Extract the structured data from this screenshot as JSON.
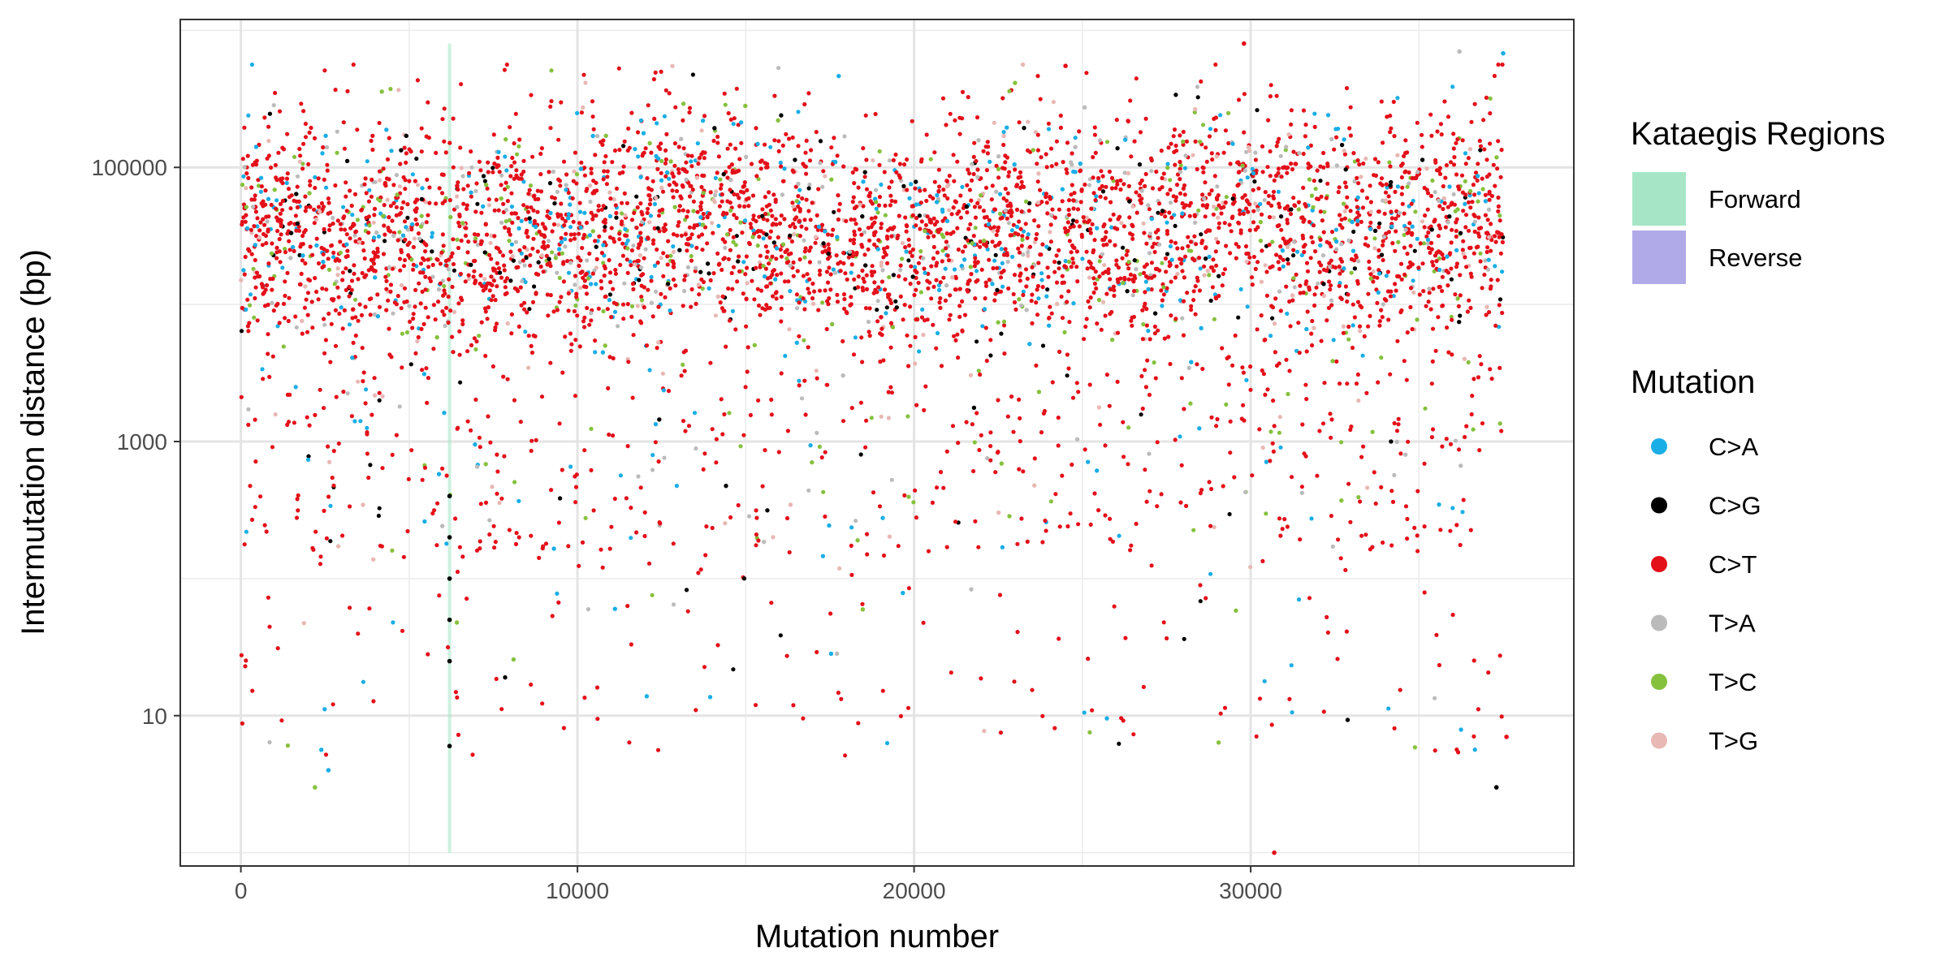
{
  "chart_data": {
    "type": "scatter",
    "xlabel": "Mutation number",
    "ylabel": "Intermutation distance (bp)",
    "xlim": [
      -1800,
      39600
    ],
    "ylim": [
      0.8,
      1200000
    ],
    "y_scale": "log10",
    "x_ticks": [
      {
        "value": 0,
        "label": "0"
      },
      {
        "value": 10000,
        "label": "10000"
      },
      {
        "value": 20000,
        "label": "20000"
      },
      {
        "value": 30000,
        "label": "30000"
      }
    ],
    "y_ticks": [
      {
        "value": 10,
        "label": "10"
      },
      {
        "value": 1000,
        "label": "1000"
      },
      {
        "value": 100000,
        "label": "100000"
      }
    ],
    "y_minor_grid": [
      1,
      100,
      10000,
      1000000
    ],
    "x_minor_grid": [
      5000,
      15000,
      25000,
      35000
    ],
    "grid": true,
    "legend_position": "right",
    "legends": [
      {
        "title": "Kataegis Regions",
        "kind": "fill",
        "entries": [
          {
            "label": "Forward",
            "color": "#a6e6c6"
          },
          {
            "label": "Reverse",
            "color": "#b1aae8"
          }
        ]
      },
      {
        "title": "Mutation",
        "kind": "point",
        "entries": [
          {
            "label": "C>A",
            "color": "#1aaee6"
          },
          {
            "label": "C>G",
            "color": "#000000"
          },
          {
            "label": "C>T",
            "color": "#e3101a"
          },
          {
            "label": "T>A",
            "color": "#bbbbbb"
          },
          {
            "label": "T>C",
            "color": "#86c13d"
          },
          {
            "label": "T>G",
            "color": "#e8b8b4"
          }
        ]
      }
    ],
    "kataegis_regions": [
      {
        "strand": "Forward",
        "x_start": 6150,
        "x_end": 6250,
        "y_min": 1,
        "y_max": 800000
      }
    ],
    "x_range": [
      0,
      37500
    ],
    "series": [
      {
        "name": "C>A",
        "color": "#1aaee6",
        "weight": 0.09
      },
      {
        "name": "C>G",
        "color": "#000000",
        "weight": 0.04
      },
      {
        "name": "C>T",
        "color": "#e3101a",
        "weight": 0.72
      },
      {
        "name": "T>A",
        "color": "#bbbbbb",
        "weight": 0.05
      },
      {
        "name": "T>C",
        "color": "#86c13d",
        "weight": 0.06
      },
      {
        "name": "T>G",
        "color": "#e8b8b4",
        "weight": 0.04
      }
    ],
    "density_profile": {
      "x": [
        0,
        2000,
        5000,
        8000,
        11000,
        13500,
        16000,
        19000,
        22000,
        24500,
        27000,
        29500,
        32000,
        35000,
        37500
      ],
      "median_log10": [
        4.5,
        4.5,
        4.4,
        4.5,
        4.5,
        4.7,
        4.5,
        4.4,
        4.5,
        4.6,
        4.5,
        4.7,
        4.5,
        4.5,
        4.7
      ]
    },
    "highlight_points": [
      {
        "series": "C>G",
        "x": 6200,
        "y": 6
      },
      {
        "series": "C>G",
        "x": 6200,
        "y": 25
      },
      {
        "series": "C>G",
        "x": 6200,
        "y": 50
      },
      {
        "series": "C>G",
        "x": 6200,
        "y": 100
      },
      {
        "series": "C>G",
        "x": 6200,
        "y": 200
      },
      {
        "series": "C>G",
        "x": 6200,
        "y": 400
      },
      {
        "series": "C>T",
        "x": 30700,
        "y": 1
      },
      {
        "series": "C>T",
        "x": 29800,
        "y": 800000
      },
      {
        "series": "C>T",
        "x": 24500,
        "y": 550000
      },
      {
        "series": "T>A",
        "x": 36200,
        "y": 700000
      },
      {
        "series": "C>A",
        "x": 37500,
        "y": 680000
      },
      {
        "series": "C>G",
        "x": 37300,
        "y": 3
      },
      {
        "series": "C>T",
        "x": 37600,
        "y": 7
      },
      {
        "series": "T>C",
        "x": 2200,
        "y": 3
      },
      {
        "series": "C>A",
        "x": 2600,
        "y": 4
      }
    ]
  }
}
